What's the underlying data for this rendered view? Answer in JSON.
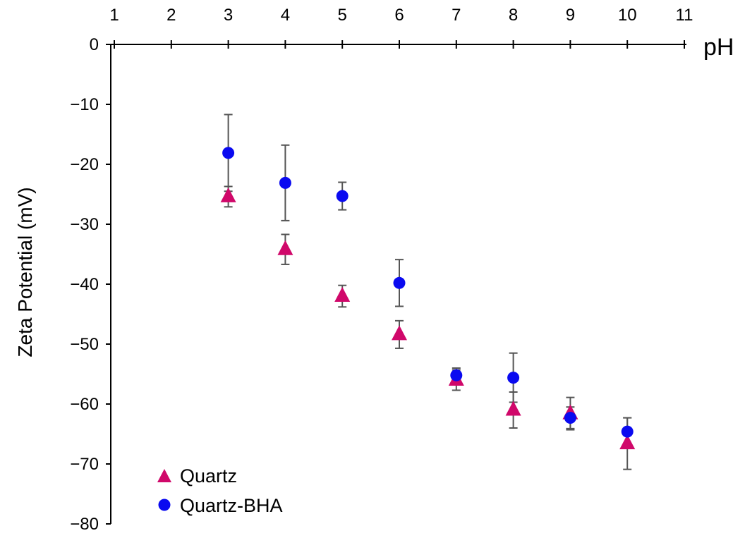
{
  "chart_data": {
    "type": "scatter",
    "xlabel": "pH",
    "ylabel": "Zeta Potential (mV)",
    "xlim": [
      1,
      11
    ],
    "ylim": [
      -80,
      0
    ],
    "x_ticks": [
      "1",
      "2",
      "3",
      "4",
      "5",
      "6",
      "7",
      "8",
      "9",
      "10",
      "11"
    ],
    "y_ticks": [
      "0",
      "−10",
      "−20",
      "−30",
      "−40",
      "−50",
      "−60",
      "−70",
      "−80"
    ],
    "x_axis_position": "top",
    "grid": false,
    "legend_position": "bottom-left",
    "series": [
      {
        "name": "Quartz",
        "marker": "triangle",
        "color": "#d0086a",
        "points": [
          {
            "x": 3,
            "y": -25.4,
            "err": 1.7
          },
          {
            "x": 4,
            "y": -34.2,
            "err": 2.5
          },
          {
            "x": 5,
            "y": -42.0,
            "err": 1.8
          },
          {
            "x": 6,
            "y": -48.4,
            "err": 2.3
          },
          {
            "x": 7,
            "y": -56.0,
            "err": 1.7
          },
          {
            "x": 8,
            "y": -61.0,
            "err": 3.0
          },
          {
            "x": 9,
            "y": -61.6,
            "err": 2.7
          },
          {
            "x": 10,
            "y": -66.6,
            "err": 4.3
          }
        ]
      },
      {
        "name": "Quartz-BHA",
        "marker": "circle",
        "color": "#0a0af0",
        "points": [
          {
            "x": 3,
            "y": -18.1,
            "err": 6.4
          },
          {
            "x": 4,
            "y": -23.1,
            "err": 6.3
          },
          {
            "x": 5,
            "y": -25.3,
            "err": 2.3
          },
          {
            "x": 6,
            "y": -39.8,
            "err": 3.9
          },
          {
            "x": 7,
            "y": -55.2,
            "err": 1.2
          },
          {
            "x": 8,
            "y": -55.6,
            "err": 4.1
          },
          {
            "x": 9,
            "y": -62.3,
            "err": 1.8
          },
          {
            "x": 10,
            "y": -64.6,
            "err": 2.3
          }
        ]
      }
    ]
  }
}
